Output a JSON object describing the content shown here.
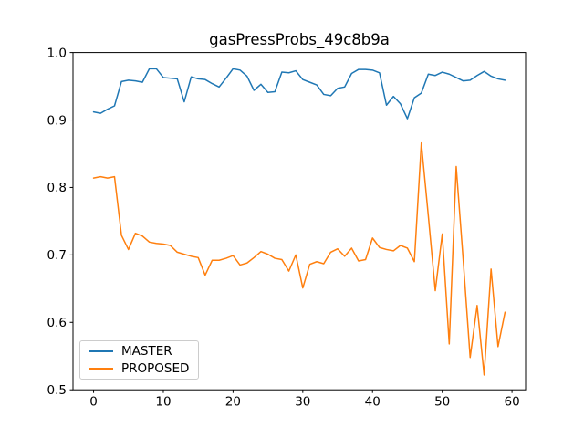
{
  "chart_data": {
    "type": "line",
    "title": "gasPressProbs_49c8b9a",
    "xlabel": "",
    "ylabel": "",
    "xlim": [
      -2.95,
      61.95
    ],
    "ylim": [
      0.5,
      1.0
    ],
    "xticks": [
      0,
      10,
      20,
      30,
      40,
      50,
      60
    ],
    "xtick_labels": [
      "0",
      "10",
      "20",
      "30",
      "40",
      "50",
      "60"
    ],
    "yticks": [
      0.5,
      0.6,
      0.7,
      0.8,
      0.9,
      1.0
    ],
    "ytick_labels": [
      "0.5",
      "0.6",
      "0.7",
      "0.8",
      "0.9",
      "1.0"
    ],
    "grid": false,
    "legend_position": "lower-left",
    "x": [
      0,
      1,
      2,
      3,
      4,
      5,
      6,
      7,
      8,
      9,
      10,
      11,
      12,
      13,
      14,
      15,
      16,
      17,
      18,
      19,
      20,
      21,
      22,
      23,
      24,
      25,
      26,
      27,
      28,
      29,
      30,
      31,
      32,
      33,
      34,
      35,
      36,
      37,
      38,
      39,
      40,
      41,
      42,
      43,
      44,
      45,
      46,
      47,
      48,
      49,
      50,
      51,
      52,
      53,
      54,
      55,
      56,
      57,
      58,
      59
    ],
    "series": [
      {
        "name": "MASTER",
        "color": "#1f77b4",
        "values": [
          0.912,
          0.91,
          0.916,
          0.921,
          0.957,
          0.959,
          0.958,
          0.956,
          0.976,
          0.976,
          0.963,
          0.962,
          0.961,
          0.927,
          0.964,
          0.961,
          0.96,
          0.954,
          0.949,
          0.962,
          0.976,
          0.974,
          0.965,
          0.944,
          0.953,
          0.941,
          0.942,
          0.971,
          0.97,
          0.973,
          0.96,
          0.956,
          0.952,
          0.938,
          0.936,
          0.947,
          0.949,
          0.969,
          0.975,
          0.975,
          0.974,
          0.97,
          0.922,
          0.935,
          0.924,
          0.902,
          0.933,
          0.94,
          0.968,
          0.966,
          0.971,
          0.968,
          0.963,
          0.958,
          0.959,
          0.966,
          0.972,
          0.965,
          0.961,
          0.959
        ]
      },
      {
        "name": "PROPOSED",
        "color": "#ff7f0e",
        "values": [
          0.814,
          0.816,
          0.814,
          0.816,
          0.729,
          0.708,
          0.732,
          0.728,
          0.719,
          0.717,
          0.716,
          0.714,
          0.704,
          0.701,
          0.698,
          0.696,
          0.67,
          0.692,
          0.692,
          0.695,
          0.699,
          0.685,
          0.688,
          0.696,
          0.705,
          0.701,
          0.695,
          0.693,
          0.676,
          0.7,
          0.651,
          0.686,
          0.69,
          0.687,
          0.704,
          0.709,
          0.698,
          0.71,
          0.691,
          0.693,
          0.725,
          0.711,
          0.708,
          0.706,
          0.714,
          0.71,
          0.69,
          0.866,
          0.758,
          0.647,
          0.731,
          0.568,
          0.831,
          0.693,
          0.548,
          0.625,
          0.522,
          0.679,
          0.564,
          0.615
        ]
      }
    ]
  }
}
